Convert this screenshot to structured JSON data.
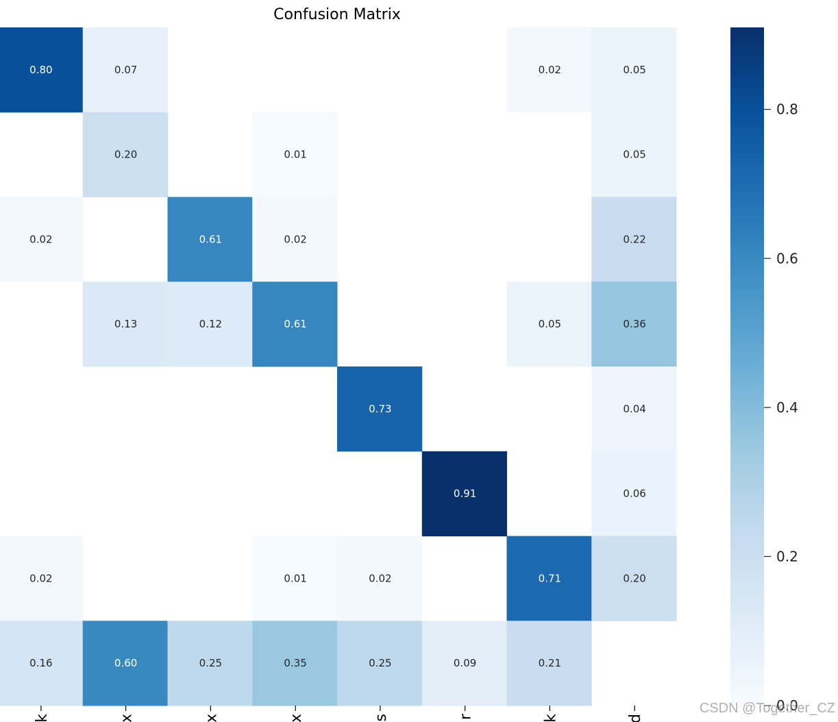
{
  "chart_data": {
    "type": "heatmap",
    "title": "Confusion Matrix",
    "rows": 8,
    "cols": 8,
    "values": [
      [
        0.8,
        0.07,
        null,
        null,
        null,
        null,
        0.02,
        0.05
      ],
      [
        null,
        0.2,
        null,
        0.01,
        null,
        null,
        null,
        0.05
      ],
      [
        0.02,
        null,
        0.61,
        0.02,
        null,
        null,
        null,
        0.22
      ],
      [
        null,
        0.13,
        0.12,
        0.61,
        null,
        null,
        0.05,
        0.36
      ],
      [
        null,
        null,
        null,
        null,
        0.73,
        null,
        null,
        0.04
      ],
      [
        null,
        null,
        null,
        null,
        null,
        0.91,
        null,
        0.06
      ],
      [
        0.02,
        null,
        null,
        0.01,
        0.02,
        null,
        0.71,
        0.2
      ],
      [
        0.16,
        0.6,
        0.25,
        0.35,
        0.25,
        0.09,
        0.21,
        null
      ]
    ],
    "value_format": "2dp",
    "colormap": "Blues",
    "vmin": 0.0,
    "vmax": 0.91,
    "colorbar": {
      "ticks": [
        0.0,
        0.2,
        0.4,
        0.6,
        0.8
      ],
      "tick_labels": [
        "0.0",
        "0.2",
        "0.4",
        "0.6",
        "0.8"
      ]
    },
    "x_tick_labels_visible": [
      "k",
      "x",
      "x",
      "x",
      "s",
      "r",
      "k",
      "d"
    ]
  },
  "watermark": "CSDN @Together_CZ"
}
